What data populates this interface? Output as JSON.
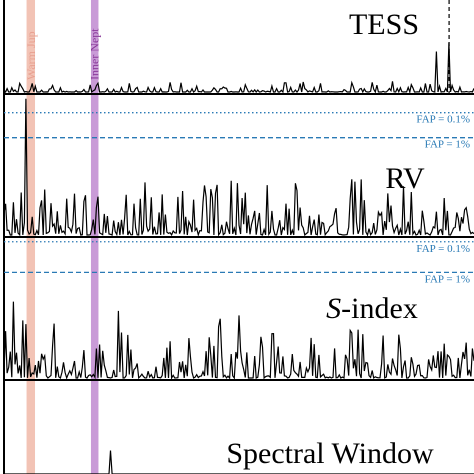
{
  "chart_data": {
    "type": "line",
    "x_range": [
      0,
      1
    ],
    "highlight_bands": [
      {
        "label": "Warm Jup",
        "color": "#f0b8a8",
        "label_color": "#e8a090",
        "x": 0.048,
        "width": 0.018
      },
      {
        "label": "Inner Nept",
        "color": "#c08ad0",
        "label_color": "#8a3a9a",
        "x": 0.185,
        "width": 0.016
      }
    ],
    "panels": [
      {
        "id": "tess",
        "title": "TESS",
        "fap_lines": [],
        "dashed_marker_x": 0.947,
        "series_seed": 11,
        "noise_level": 0.12,
        "spikes": [
          {
            "x": 0.92,
            "y": 0.45
          },
          {
            "x": 0.945,
            "y": 0.55
          }
        ]
      },
      {
        "id": "rv",
        "title": "RV",
        "fap_lines": [
          {
            "label": "FAP = 0.1%",
            "level": 0.88,
            "style": "dotted"
          },
          {
            "label": "FAP = 1%",
            "level": 0.7,
            "style": "dashed"
          }
        ],
        "series_seed": 23,
        "noise_level": 0.3,
        "spikes": [
          {
            "x": 0.045,
            "y": 0.98
          },
          {
            "x": 0.76,
            "y": 0.4
          },
          {
            "x": 0.45,
            "y": 0.3
          }
        ]
      },
      {
        "id": "sindex",
        "title_italic": "S",
        "title_rest": "-index",
        "fap_lines": [
          {
            "label": "FAP = 0.1%",
            "level": 0.98,
            "style": "dotted"
          },
          {
            "label": "FAP = 1%",
            "level": 0.76,
            "style": "dashed"
          }
        ],
        "series_seed": 37,
        "noise_level": 0.35,
        "spikes": [
          {
            "x": 0.02,
            "y": 0.55
          },
          {
            "x": 0.5,
            "y": 0.45
          }
        ]
      },
      {
        "id": "window",
        "title": "Spectral Window",
        "fap_lines": [],
        "series_seed": 0,
        "noise_level": 0,
        "spikes": [
          {
            "x": 0.225,
            "y": 0.25
          }
        ]
      }
    ]
  }
}
